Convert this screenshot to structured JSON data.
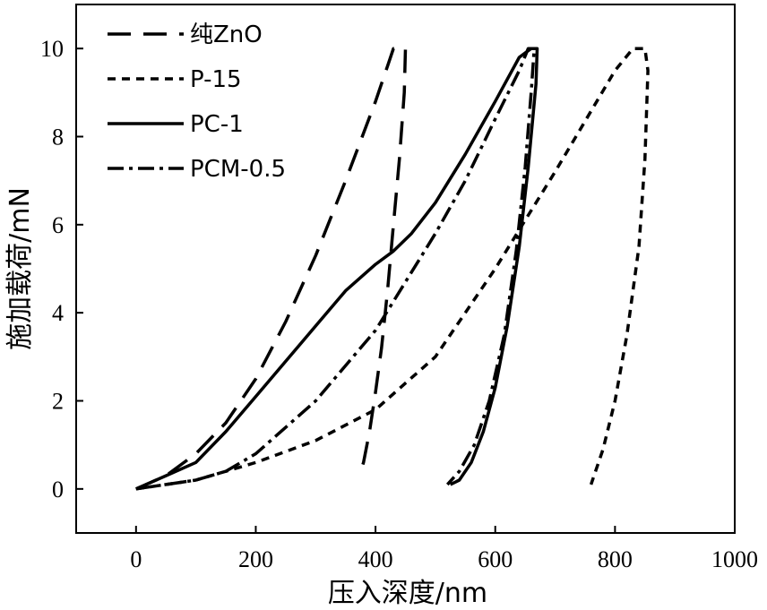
{
  "chart_data": {
    "type": "line",
    "xlabel": "压入深度/nm",
    "ylabel": "施加载荷/mN",
    "xlim": [
      -100,
      1000
    ],
    "ylim": [
      -1,
      11
    ],
    "xticks": [
      0,
      200,
      400,
      600,
      800,
      1000
    ],
    "yticks": [
      0,
      2,
      4,
      6,
      8,
      10
    ],
    "legend_position": "top-left",
    "grid": false,
    "series": [
      {
        "name": "纯ZnO",
        "style": "long-dash",
        "x": [
          0,
          50,
          100,
          150,
          200,
          250,
          300,
          350,
          400,
          420,
          430,
          440,
          450,
          448,
          440,
          430,
          420,
          410,
          400,
          390,
          380,
          375
        ],
        "y": [
          0,
          0.3,
          0.8,
          1.5,
          2.5,
          3.8,
          5.3,
          7.0,
          8.8,
          9.6,
          10.0,
          10.0,
          10.0,
          9.0,
          7.5,
          6.0,
          4.5,
          3.2,
          2.2,
          1.3,
          0.6,
          0.4
        ]
      },
      {
        "name": "P-15",
        "style": "short-dash",
        "x": [
          0,
          100,
          200,
          300,
          400,
          500,
          600,
          700,
          800,
          830,
          850,
          855,
          850,
          840,
          820,
          800,
          780,
          760
        ],
        "y": [
          0,
          0.2,
          0.6,
          1.1,
          1.8,
          3.0,
          5.0,
          7.2,
          9.5,
          10.0,
          10.0,
          9.5,
          7.5,
          5.5,
          3.5,
          2.0,
          0.9,
          0.1
        ]
      },
      {
        "name": "PC-1",
        "style": "solid",
        "x": [
          0,
          50,
          100,
          150,
          200,
          250,
          300,
          350,
          400,
          430,
          460,
          500,
          550,
          600,
          640,
          660,
          670,
          668,
          655,
          640,
          620,
          600,
          580,
          560,
          540,
          525
        ],
        "y": [
          0,
          0.3,
          0.6,
          1.3,
          2.1,
          2.9,
          3.7,
          4.5,
          5.1,
          5.4,
          5.8,
          6.5,
          7.6,
          8.8,
          9.8,
          10.0,
          10.0,
          9.2,
          7.3,
          5.5,
          3.7,
          2.3,
          1.3,
          0.6,
          0.2,
          0.1
        ]
      },
      {
        "name": "PCM-0.5",
        "style": "dash-dot",
        "x": [
          0,
          100,
          150,
          200,
          300,
          400,
          450,
          500,
          550,
          600,
          640,
          655,
          665,
          660,
          650,
          635,
          615,
          590,
          565,
          540,
          520
        ],
        "y": [
          0,
          0.2,
          0.4,
          0.8,
          2.0,
          3.6,
          4.7,
          5.8,
          7.0,
          8.4,
          9.5,
          10.0,
          10.0,
          9.0,
          7.3,
          5.4,
          3.5,
          2.0,
          1.0,
          0.4,
          0.1
        ]
      }
    ]
  }
}
